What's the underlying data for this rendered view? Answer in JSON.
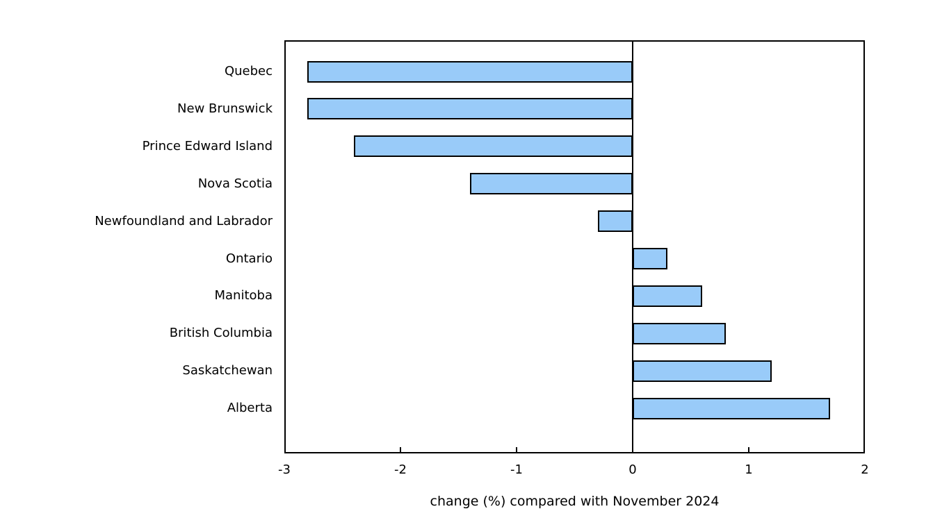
{
  "figure": {
    "background": "#ffffff"
  },
  "chart_data": {
    "type": "bar",
    "orientation": "horizontal",
    "categories": [
      "Quebec",
      "New Brunswick",
      "Prince Edward Island",
      "Nova Scotia",
      "Newfoundland and Labrador",
      "Ontario",
      "Manitoba",
      "British Columbia",
      "Saskatchewan",
      "Alberta"
    ],
    "values": [
      -2.8,
      -2.8,
      -2.4,
      -1.4,
      -0.3,
      0.3,
      0.6,
      0.8,
      1.2,
      1.7
    ],
    "xlabel": "change (%) compared with November 2024",
    "ylabel": "",
    "xlim": [
      -3,
      2
    ],
    "xticks": [
      -3,
      -2,
      -1,
      0,
      1,
      2
    ],
    "grid": false,
    "legend": "none",
    "bar_fill": "#99cbf9",
    "bar_border": "#000000",
    "axis_color": "#000000",
    "text_color": "#000000"
  }
}
